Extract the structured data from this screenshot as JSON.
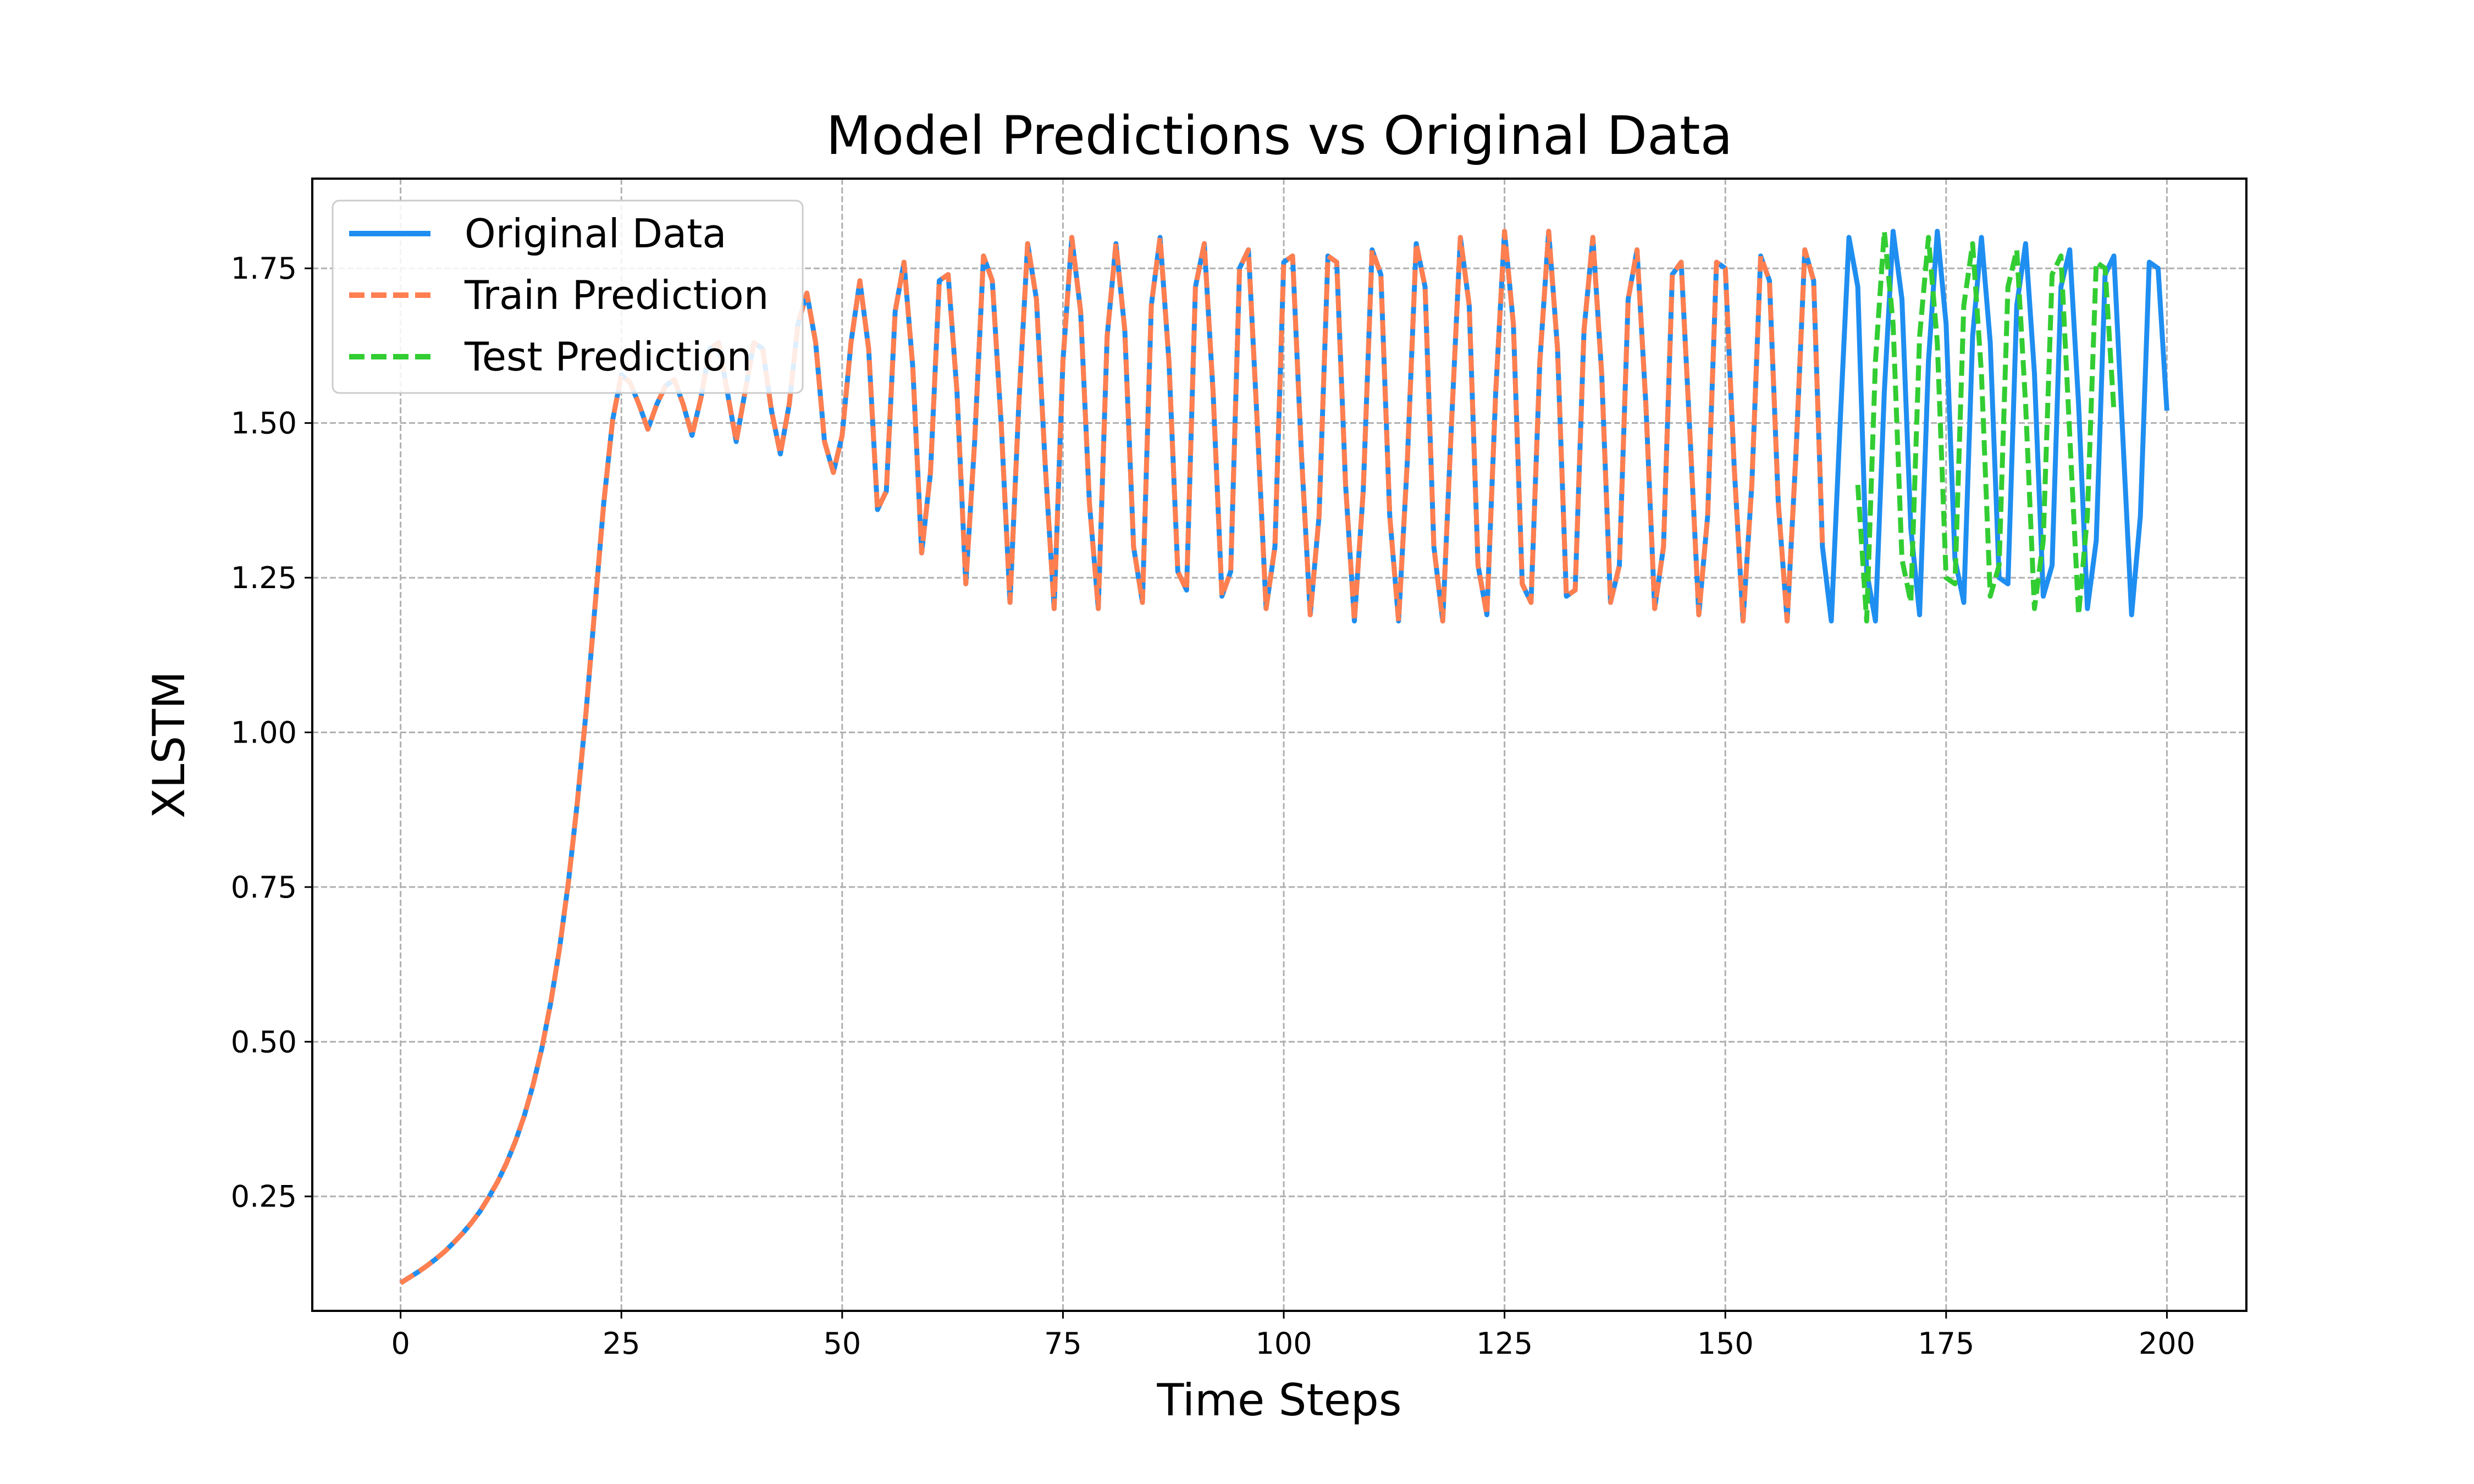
{
  "chart_data": {
    "type": "line",
    "title": "Model Predictions vs Original Data",
    "xlabel": "Time Steps",
    "ylabel": "XLSTM",
    "xlim": [
      -10,
      209
    ],
    "ylim": [
      0.065,
      1.895
    ],
    "xticks": [
      0,
      25,
      50,
      75,
      100,
      125,
      150,
      175,
      200
    ],
    "yticks": [
      0.25,
      0.5,
      0.75,
      1.0,
      1.25,
      1.5,
      1.75
    ],
    "xtick_labels": [
      "0",
      "25",
      "50",
      "75",
      "100",
      "125",
      "150",
      "175",
      "200"
    ],
    "ytick_labels": [
      "0.25",
      "0.50",
      "0.75",
      "1.00",
      "1.25",
      "1.50",
      "1.75"
    ],
    "grid": true,
    "legend_position": "top-left",
    "series": [
      {
        "name": "Original Data",
        "color": "#1f8ef1",
        "style": "solid",
        "x_start": 0,
        "values": [
          0.11,
          0.119,
          0.128,
          0.138,
          0.149,
          0.161,
          0.175,
          0.19,
          0.207,
          0.226,
          0.249,
          0.274,
          0.304,
          0.339,
          0.38,
          0.43,
          0.49,
          0.563,
          0.651,
          0.758,
          0.885,
          1.033,
          1.201,
          1.37,
          1.504,
          1.578,
          1.565,
          1.53,
          1.49,
          1.53,
          1.56,
          1.57,
          1.53,
          1.48,
          1.54,
          1.62,
          1.63,
          1.55,
          1.47,
          1.55,
          1.63,
          1.62,
          1.52,
          1.45,
          1.53,
          1.66,
          1.71,
          1.63,
          1.47,
          1.42,
          1.48,
          1.63,
          1.73,
          1.62,
          1.36,
          1.39,
          1.68,
          1.76,
          1.59,
          1.29,
          1.42,
          1.73,
          1.74,
          1.55,
          1.24,
          1.47,
          1.77,
          1.73,
          1.5,
          1.21,
          1.53,
          1.79,
          1.7,
          1.43,
          1.2,
          1.6,
          1.8,
          1.68,
          1.37,
          1.2,
          1.64,
          1.79,
          1.65,
          1.3,
          1.21,
          1.69,
          1.8,
          1.6,
          1.26,
          1.23,
          1.72,
          1.79,
          1.55,
          1.22,
          1.26,
          1.75,
          1.78,
          1.5,
          1.2,
          1.3,
          1.76,
          1.77,
          1.45,
          1.19,
          1.35,
          1.77,
          1.76,
          1.4,
          1.18,
          1.39,
          1.78,
          1.74,
          1.35,
          1.18,
          1.44,
          1.79,
          1.72,
          1.3,
          1.18,
          1.5,
          1.8,
          1.69,
          1.27,
          1.19,
          1.55,
          1.81,
          1.66,
          1.24,
          1.21,
          1.6,
          1.81,
          1.62,
          1.22,
          1.23,
          1.65,
          1.8,
          1.58,
          1.21,
          1.27,
          1.7,
          1.78,
          1.53,
          1.2,
          1.3,
          1.74,
          1.76,
          1.48,
          1.19,
          1.35,
          1.76,
          1.75,
          1.43,
          1.18,
          1.4,
          1.77,
          1.73,
          1.37,
          1.18,
          1.45,
          1.78,
          1.73,
          1.3,
          1.18,
          1.5,
          1.8,
          1.72,
          1.26,
          1.18,
          1.55,
          1.81,
          1.7,
          1.33,
          1.19,
          1.6,
          1.81,
          1.66,
          1.28,
          1.21,
          1.64,
          1.8,
          1.63,
          1.25,
          1.24,
          1.69,
          1.79,
          1.58,
          1.22,
          1.27,
          1.72,
          1.78,
          1.53,
          1.2,
          1.31,
          1.74,
          1.77,
          1.48,
          1.19,
          1.35,
          1.76,
          1.75,
          1.52
        ]
      },
      {
        "name": "Train Prediction",
        "color": "#ff7f50",
        "style": "dashed",
        "x_start": 0,
        "values": [
          0.11,
          0.119,
          0.128,
          0.138,
          0.149,
          0.161,
          0.175,
          0.19,
          0.207,
          0.226,
          0.249,
          0.274,
          0.304,
          0.339,
          0.38,
          0.43,
          0.49,
          0.563,
          0.651,
          0.758,
          0.885,
          1.033,
          1.201,
          1.37,
          1.504,
          1.578,
          1.565,
          1.53,
          1.49,
          1.53,
          1.56,
          1.57,
          1.53,
          1.48,
          1.54,
          1.62,
          1.63,
          1.55,
          1.47,
          1.55,
          1.63,
          1.62,
          1.52,
          1.45,
          1.53,
          1.66,
          1.71,
          1.63,
          1.47,
          1.42,
          1.48,
          1.63,
          1.73,
          1.62,
          1.36,
          1.39,
          1.68,
          1.76,
          1.59,
          1.29,
          1.42,
          1.73,
          1.74,
          1.55,
          1.24,
          1.47,
          1.77,
          1.73,
          1.5,
          1.21,
          1.53,
          1.79,
          1.7,
          1.43,
          1.2,
          1.6,
          1.8,
          1.68,
          1.37,
          1.2,
          1.64,
          1.79,
          1.65,
          1.3,
          1.21,
          1.69,
          1.8,
          1.6,
          1.26,
          1.23,
          1.72,
          1.79,
          1.55,
          1.22,
          1.26,
          1.75,
          1.78,
          1.5,
          1.2,
          1.3,
          1.76,
          1.77,
          1.45,
          1.19,
          1.35,
          1.77,
          1.76,
          1.4,
          1.18,
          1.39,
          1.78,
          1.74,
          1.35,
          1.18,
          1.44,
          1.79,
          1.72,
          1.3,
          1.18,
          1.5,
          1.8,
          1.69,
          1.27,
          1.19,
          1.55,
          1.81,
          1.66,
          1.24,
          1.21,
          1.6,
          1.81,
          1.62,
          1.22,
          1.23,
          1.65,
          1.8,
          1.58,
          1.21,
          1.27,
          1.7,
          1.78,
          1.53,
          1.2,
          1.3,
          1.74,
          1.76,
          1.48,
          1.19,
          1.35,
          1.76,
          1.75,
          1.43,
          1.18,
          1.4,
          1.77,
          1.73,
          1.37,
          1.18,
          1.45,
          1.78,
          1.73,
          1.3
        ]
      },
      {
        "name": "Test Prediction",
        "color": "#32cd32",
        "style": "dashed",
        "x_start": 165,
        "values": [
          1.4,
          1.18,
          1.6,
          1.81,
          1.66,
          1.28,
          1.21,
          1.64,
          1.8,
          1.63,
          1.25,
          1.24,
          1.69,
          1.79,
          1.58,
          1.22,
          1.27,
          1.72,
          1.78,
          1.53,
          1.2,
          1.31,
          1.74,
          1.77,
          1.48,
          1.19,
          1.35,
          1.76,
          1.75,
          1.52
        ]
      }
    ]
  }
}
